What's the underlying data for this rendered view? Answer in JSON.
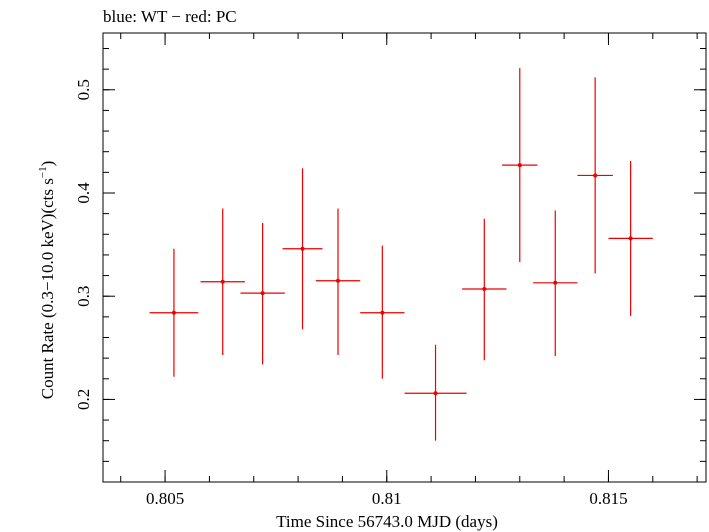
{
  "chart_data": {
    "type": "scatter",
    "title": "blue: WT − red: PC",
    "xlabel": "Time Since 56743.0 MJD (days)",
    "ylabel_main": "Count Rate (0.3−10.0 keV)(cts s",
    "ylabel_sup": "−1",
    "ylabel_close": ")",
    "xlim": [
      0.8036,
      0.8172
    ],
    "ylim": [
      0.12,
      0.555
    ],
    "x_ticks": [
      {
        "value": 0.805,
        "label": "0.805"
      },
      {
        "value": 0.81,
        "label": "0.81"
      },
      {
        "value": 0.815,
        "label": "0.815"
      }
    ],
    "y_ticks": [
      {
        "value": 0.2,
        "label": "0.2"
      },
      {
        "value": 0.3,
        "label": "0.3"
      },
      {
        "value": 0.4,
        "label": "0.4"
      },
      {
        "value": 0.5,
        "label": "0.5"
      }
    ],
    "x_minor_step": 0.001,
    "y_minor_step": 0.02,
    "series": [
      {
        "color": "#ee0000",
        "points": [
          {
            "x": 0.8052,
            "y": 0.284,
            "xerr": 0.00055,
            "ylo": 0.222,
            "yhi": 0.346
          },
          {
            "x": 0.8063,
            "y": 0.314,
            "xerr": 0.0005,
            "ylo": 0.243,
            "yhi": 0.385
          },
          {
            "x": 0.8072,
            "y": 0.303,
            "xerr": 0.0005,
            "ylo": 0.234,
            "yhi": 0.371
          },
          {
            "x": 0.8081,
            "y": 0.346,
            "xerr": 0.00045,
            "ylo": 0.268,
            "yhi": 0.424
          },
          {
            "x": 0.8089,
            "y": 0.315,
            "xerr": 0.0005,
            "ylo": 0.243,
            "yhi": 0.385
          },
          {
            "x": 0.8099,
            "y": 0.284,
            "xerr": 0.0005,
            "ylo": 0.22,
            "yhi": 0.349
          },
          {
            "x": 0.8111,
            "y": 0.206,
            "xerr": 0.0007,
            "ylo": 0.16,
            "yhi": 0.253
          },
          {
            "x": 0.8122,
            "y": 0.307,
            "xerr": 0.0005,
            "ylo": 0.238,
            "yhi": 0.375
          },
          {
            "x": 0.813,
            "y": 0.427,
            "xerr": 0.0004,
            "ylo": 0.333,
            "yhi": 0.521
          },
          {
            "x": 0.8138,
            "y": 0.313,
            "xerr": 0.0005,
            "ylo": 0.242,
            "yhi": 0.383
          },
          {
            "x": 0.8147,
            "y": 0.417,
            "xerr": 0.0004,
            "ylo": 0.322,
            "yhi": 0.512
          },
          {
            "x": 0.8155,
            "y": 0.356,
            "xerr": 0.0005,
            "ylo": 0.281,
            "yhi": 0.431
          }
        ]
      }
    ]
  }
}
